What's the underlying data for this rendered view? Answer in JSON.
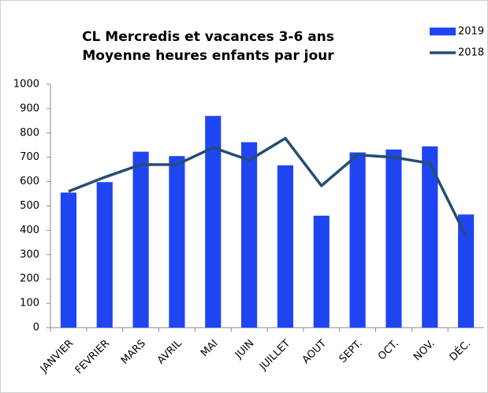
{
  "chart_data": {
    "type": "bar",
    "title": [
      "CL Mercredis et vacances 3-6 ans",
      "Moyenne heures enfants par jour"
    ],
    "categories": [
      "JANVIER",
      "FEVRIER",
      "MARS",
      "AVRIL",
      "MAI",
      "JUIN",
      "JUILLET",
      "AOUT",
      "SEPT.",
      "OCT.",
      "NOV.",
      "DÉC."
    ],
    "series": [
      {
        "name": "2019",
        "type": "bar",
        "color": "#1f45f2",
        "values": [
          555,
          598,
          723,
          705,
          870,
          762,
          667,
          460,
          720,
          732,
          745,
          465
        ]
      },
      {
        "name": "2018",
        "type": "line",
        "color": "#264d73",
        "values": [
          560,
          618,
          670,
          670,
          740,
          688,
          778,
          583,
          710,
          700,
          675,
          375
        ]
      }
    ],
    "ylim": [
      0,
      1000
    ],
    "yticks": [
      0,
      100,
      200,
      300,
      400,
      500,
      600,
      700,
      800,
      900,
      1000
    ],
    "grid": false
  }
}
